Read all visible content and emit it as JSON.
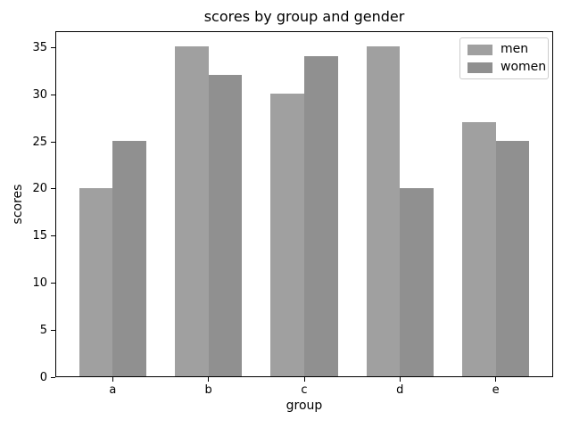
{
  "chart_data": {
    "type": "bar",
    "title": "scores by group and gender",
    "xlabel": "group",
    "ylabel": "scores",
    "categories": [
      "a",
      "b",
      "c",
      "d",
      "e"
    ],
    "series": [
      {
        "name": "men",
        "color": "#a0a0a0",
        "values": [
          20,
          35,
          30,
          35,
          27
        ]
      },
      {
        "name": "women",
        "color": "#909090",
        "values": [
          25,
          32,
          34,
          20,
          25
        ]
      }
    ],
    "yticks": [
      0,
      5,
      10,
      15,
      20,
      25,
      30,
      35
    ],
    "ylim": [
      0,
      36.75
    ],
    "xlim": [
      -0.6,
      4.6
    ],
    "bar_width": 0.35,
    "grid": false,
    "legend_position": "upper right"
  }
}
